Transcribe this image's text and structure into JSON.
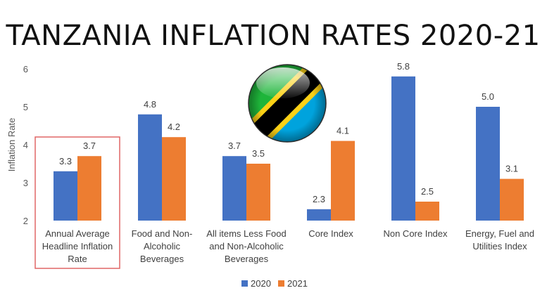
{
  "chart_data": {
    "type": "bar",
    "title": "TANZANIA INFLATION RATES 2020-21",
    "ylabel": "Inflation Rate",
    "xlabel": "",
    "ylim": [
      2,
      6
    ],
    "yticks": [
      2,
      3,
      4,
      5,
      6
    ],
    "categories": [
      [
        "Annual Average",
        "Headline Inflation",
        "Rate"
      ],
      [
        "Food and Non-",
        "Alcoholic",
        "Beverages"
      ],
      [
        "All items Less Food",
        "and Non-Alcoholic",
        "Beverages"
      ],
      [
        "Core Index"
      ],
      [
        "Non Core Index"
      ],
      [
        "Energy, Fuel and",
        "Utilities Index"
      ]
    ],
    "series": [
      {
        "name": "2020",
        "color": "#4472C4",
        "values": [
          3.3,
          4.8,
          3.7,
          2.3,
          5.8,
          5.0
        ],
        "labels": [
          "3.3",
          "4.8",
          "3.7",
          "2.3",
          "5.8",
          "5.0"
        ]
      },
      {
        "name": "2021",
        "color": "#ED7D31",
        "values": [
          3.7,
          4.2,
          3.5,
          4.1,
          2.5,
          3.1
        ],
        "labels": [
          "3.7",
          "4.2",
          "3.5",
          "4.1",
          "2.5",
          "3.1"
        ]
      }
    ],
    "grid": false,
    "legend": "bottom",
    "highlight_category_index": 0,
    "highlight_color": "#E06666",
    "flag_icon": "tanzania-flag-icon"
  }
}
